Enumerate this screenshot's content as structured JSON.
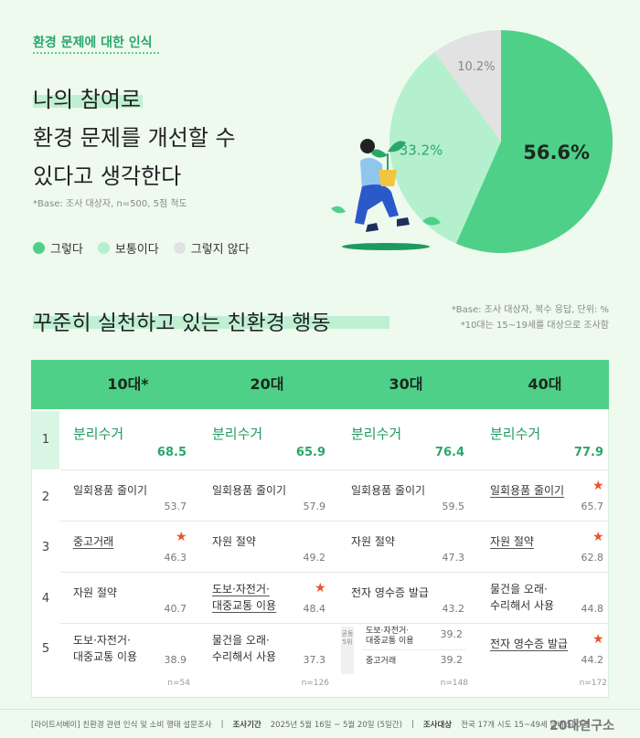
{
  "header": {
    "topic": "환경 문제에 대한 인식",
    "headline": [
      "나의 참여로",
      "환경 문제를 개선할 수",
      "있다고 생각한다"
    ],
    "base": "*Base: 조사 대상자, n=500, 5점 척도"
  },
  "pie": {
    "legend": [
      {
        "label": "그렇다",
        "color": "#4fd088"
      },
      {
        "label": "보통이다",
        "color": "#b4f0cd"
      },
      {
        "label": "그렇지 않다",
        "color": "#e2e2e2"
      }
    ]
  },
  "section": {
    "title": "꾸준히 실천하고 있는 친환경 행동",
    "notes": [
      "*Base: 조사 대상자, 복수 응답, 단위: %",
      "*10대는 15~19세를 대상으로 조사함"
    ]
  },
  "table": {
    "ranks": [
      "1",
      "2",
      "3",
      "4",
      "5"
    ],
    "columns": [
      {
        "header": "10대*",
        "n": "n=54",
        "rows": [
          {
            "name": "분리수거",
            "value": "68.5"
          },
          {
            "name": "일회용품 줄이기",
            "value": "53.7"
          },
          {
            "name": "중고거래",
            "value": "46.3",
            "star": true
          },
          {
            "name": "자원 절약",
            "value": "40.7"
          },
          {
            "name": "도보·자전거·\n대중교통 이용",
            "value": "38.9"
          }
        ]
      },
      {
        "header": "20대",
        "n": "n=126",
        "rows": [
          {
            "name": "분리수거",
            "value": "65.9"
          },
          {
            "name": "일회용품 줄이기",
            "value": "57.9"
          },
          {
            "name": "자원 절약",
            "value": "49.2"
          },
          {
            "name": "도보·자전거·\n대중교통 이용",
            "value": "48.4",
            "star": true
          },
          {
            "name": "물건을 오래·\n수리해서 사용",
            "value": "37.3"
          }
        ]
      },
      {
        "header": "30대",
        "n": "n=148",
        "rows": [
          {
            "name": "분리수거",
            "value": "76.4"
          },
          {
            "name": "일회용품 줄이기",
            "value": "59.5"
          },
          {
            "name": "자원 절약",
            "value": "47.3"
          },
          {
            "name": "전자 영수증 발급",
            "value": "43.2"
          },
          {
            "name": "도보·자전거·\n대중교통 이용",
            "value": "39.2",
            "tie": {
              "label": "공동5위",
              "name": "중고거래",
              "value": "39.2"
            }
          }
        ]
      },
      {
        "header": "40대",
        "n": "n=172",
        "rows": [
          {
            "name": "분리수거",
            "value": "77.9"
          },
          {
            "name": "일회용품 줄이기",
            "value": "65.7",
            "star": true
          },
          {
            "name": "자원 절약",
            "value": "62.8",
            "star": true
          },
          {
            "name": "물건을 오래·\n수리해서 사용",
            "value": "44.8"
          },
          {
            "name": "전자 영수증 발급",
            "value": "44.2",
            "star": true
          }
        ]
      }
    ]
  },
  "footer": {
    "survey": "[라이트서베이] 친환경 관련 인식 및 소비 행태 설문조사",
    "period_label": "조사기간",
    "period": "2025년 5월 16일 ~ 5월 20일 (5일간)",
    "target_label": "조사대상",
    "target": "전국 17개 시도 15~49세 남녀 500명",
    "brand": "20대연구소"
  },
  "colors": {
    "accent": "#4fd088",
    "star": "#e8552d",
    "background": "#eefaee"
  },
  "chart_data": {
    "type": "pie",
    "labels": [
      "그렇다",
      "보통이다",
      "그렇지 않다"
    ],
    "values": [
      56.6,
      33.2,
      10.2
    ],
    "value_labels": [
      "56.6%",
      "33.2%",
      "10.2%"
    ],
    "colors": [
      "#4fd088",
      "#b4f0cd",
      "#e2e2e2"
    ]
  }
}
